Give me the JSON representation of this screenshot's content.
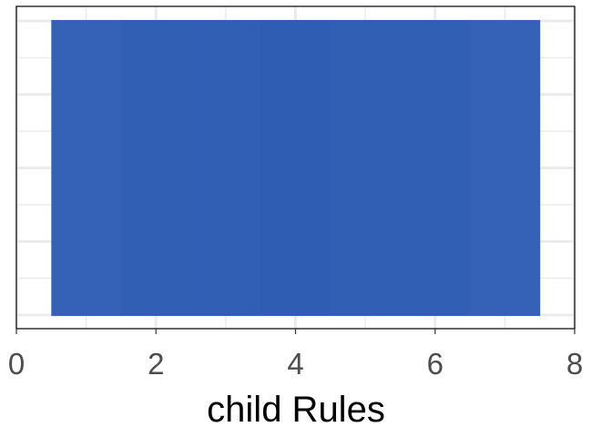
{
  "chart_data": {
    "type": "bar",
    "orientation": "horizontal",
    "xlabel": "child Rules",
    "ylabel": "",
    "xlim": [
      0,
      8
    ],
    "x_ticks": [
      0,
      2,
      4,
      6,
      8
    ],
    "grid": true,
    "legend": "none",
    "bars": [
      {
        "start": 0.5,
        "end": 1.5,
        "color": "#3562b5"
      },
      {
        "start": 1.5,
        "end": 2.5,
        "color": "#305fb4"
      },
      {
        "start": 2.5,
        "end": 3.5,
        "color": "#305fb4"
      },
      {
        "start": 3.5,
        "end": 4.5,
        "color": "#2e5db3"
      },
      {
        "start": 4.5,
        "end": 5.5,
        "color": "#305fb4"
      },
      {
        "start": 5.5,
        "end": 6.5,
        "color": "#305fb4"
      },
      {
        "start": 6.5,
        "end": 7.5,
        "color": "#3562b5"
      }
    ],
    "panel_border_color": "#000000",
    "grid_color": "#ebebeb"
  }
}
